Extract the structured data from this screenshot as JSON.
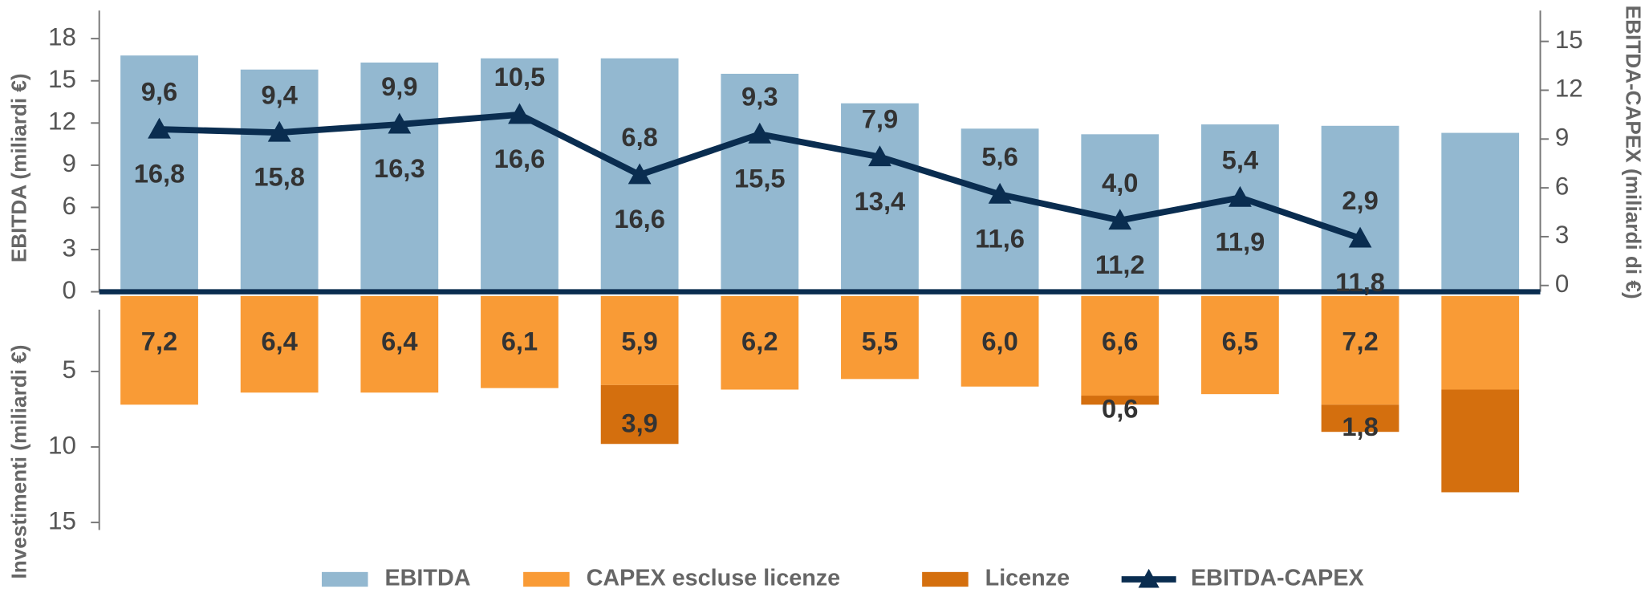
{
  "chart_data": [
    {
      "type": "bar",
      "categories": [
        null,
        null,
        null,
        null,
        null,
        null,
        null,
        null,
        null,
        null,
        null,
        null
      ],
      "ylabel": "EBITDA (miliardi €)",
      "ylim": [
        0,
        20
      ],
      "yticks": [
        0,
        3,
        6,
        9,
        12,
        15,
        18
      ],
      "y2label": "EBITDA-CAPEX (miliardi di €)",
      "y2lim": [
        0,
        16.9
      ],
      "y2ticks": [
        0,
        3,
        6,
        9,
        12,
        15
      ],
      "legend": "bottom",
      "series": [
        {
          "name": "EBITDA",
          "type": "bar",
          "color": "#93b8d0",
          "values": [
            16.8,
            15.8,
            16.3,
            16.6,
            16.6,
            15.5,
            13.4,
            11.6,
            11.2,
            11.9,
            11.8,
            11.3
          ],
          "value_labels": [
            "16,8",
            "15,8",
            "16,3",
            "16,6",
            "16,6",
            "15,5",
            "13,4",
            "11,6",
            "11,2",
            "11,9",
            "11,8",
            null
          ]
        },
        {
          "name": "EBITDA-CAPEX",
          "type": "line",
          "axis": "y2",
          "color": "#0a2d50",
          "marker": "triangle",
          "values": [
            9.6,
            9.4,
            9.9,
            10.5,
            6.8,
            9.3,
            7.9,
            5.6,
            4.0,
            5.4,
            2.9,
            null
          ],
          "value_labels": [
            "9,6",
            "9,4",
            "9,9",
            "10,5",
            "6,8",
            "9,3",
            "7,9",
            "5,6",
            "4,0",
            "5,4",
            "2,9",
            null
          ]
        }
      ]
    },
    {
      "type": "stacked_bar",
      "inverted": true,
      "categories": [
        null,
        null,
        null,
        null,
        null,
        null,
        null,
        null,
        null,
        null,
        null,
        null
      ],
      "ylabel": "Investimenti (miliardi €)",
      "ylim": [
        0,
        15.5
      ],
      "yticks": [
        5,
        10,
        15
      ],
      "series": [
        {
          "name": "CAPEX escluse licenze",
          "color": "#f99b36",
          "values": [
            7.2,
            6.4,
            6.4,
            6.1,
            5.9,
            6.2,
            5.5,
            6.0,
            6.6,
            6.5,
            7.2,
            6.2
          ],
          "value_labels": [
            "7,2",
            "6,4",
            "6,4",
            "6,1",
            "5,9",
            "6,2",
            "5,5",
            "6,0",
            "6,6",
            "6,5",
            "7,2",
            null
          ]
        },
        {
          "name": "Licenze",
          "color": "#d46f0e",
          "values": [
            null,
            null,
            null,
            null,
            3.9,
            null,
            null,
            null,
            0.6,
            null,
            1.8,
            6.8
          ],
          "value_labels": [
            null,
            null,
            null,
            null,
            "3,9",
            null,
            null,
            null,
            "0,6",
            null,
            "1,8",
            null
          ]
        }
      ]
    }
  ]
}
